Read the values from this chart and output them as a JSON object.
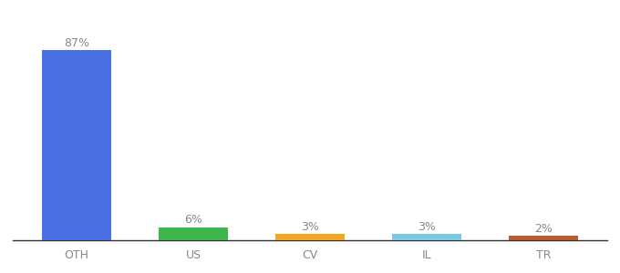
{
  "categories": [
    "OTH",
    "US",
    "CV",
    "IL",
    "TR"
  ],
  "values": [
    87,
    6,
    3,
    3,
    2
  ],
  "labels": [
    "87%",
    "6%",
    "3%",
    "3%",
    "2%"
  ],
  "bar_colors": [
    "#4A6FE3",
    "#3CB54A",
    "#F5A623",
    "#7BC8E2",
    "#B85C2A"
  ],
  "ylim": [
    0,
    100
  ],
  "background_color": "#ffffff",
  "label_fontsize": 9,
  "tick_fontsize": 9,
  "bar_width": 0.6,
  "label_color": "#888888",
  "tick_color": "#888888",
  "spine_color": "#333333"
}
